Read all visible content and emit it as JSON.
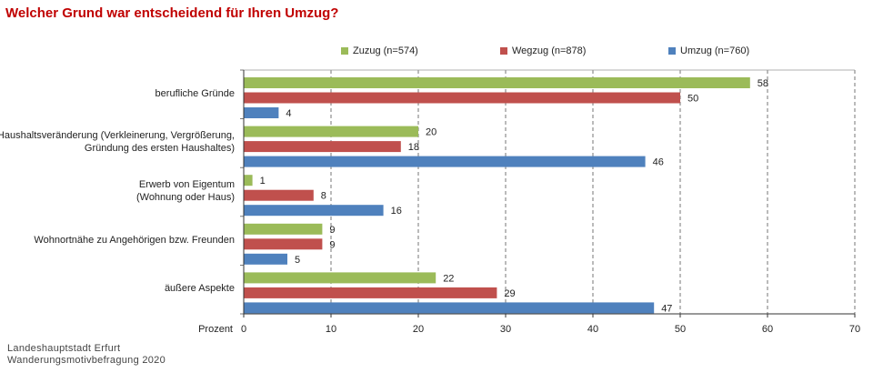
{
  "title": "Welcher Grund war entscheidend für Ihren Umzug?",
  "footer": {
    "line1": "Landeshauptstadt  Erfurt",
    "line2": "Wanderungsmotivbefragung  2020"
  },
  "legend": [
    {
      "label": "Zuzug (n=574)",
      "color": "#9bbb59"
    },
    {
      "label": "Wegzug (n=878)",
      "color": "#c0504d"
    },
    {
      "label": "Umzug (n=760)",
      "color": "#4f81bd"
    }
  ],
  "chart_data": {
    "type": "bar",
    "orientation": "horizontal",
    "title": "Welcher Grund war entscheidend für Ihren Umzug?",
    "xlabel": "Prozent",
    "xlim": [
      0,
      70
    ],
    "xticks": [
      0,
      10,
      20,
      30,
      40,
      50,
      60,
      70
    ],
    "grid": "vertical dashed",
    "legend_position": "top",
    "categories": [
      [
        "berufliche Gründe"
      ],
      [
        "Haushaltsveränderung (Verkleinerung, Vergrößerung,",
        "Gründung des ersten Haushaltes)"
      ],
      [
        "Erwerb von Eigentum",
        "(Wohnung oder Haus)"
      ],
      [
        "Wohnortnähe zu Angehörigen bzw. Freunden"
      ],
      [
        "äußere Aspekte"
      ]
    ],
    "series": [
      {
        "name": "Zuzug (n=574)",
        "color": "#9bbb59",
        "values": [
          58,
          20,
          1,
          9,
          22
        ]
      },
      {
        "name": "Wegzug (n=878)",
        "color": "#c0504d",
        "values": [
          50,
          18,
          8,
          9,
          29
        ]
      },
      {
        "name": "Umzug (n=760)",
        "color": "#4f81bd",
        "values": [
          4,
          46,
          16,
          5,
          47
        ]
      }
    ]
  }
}
